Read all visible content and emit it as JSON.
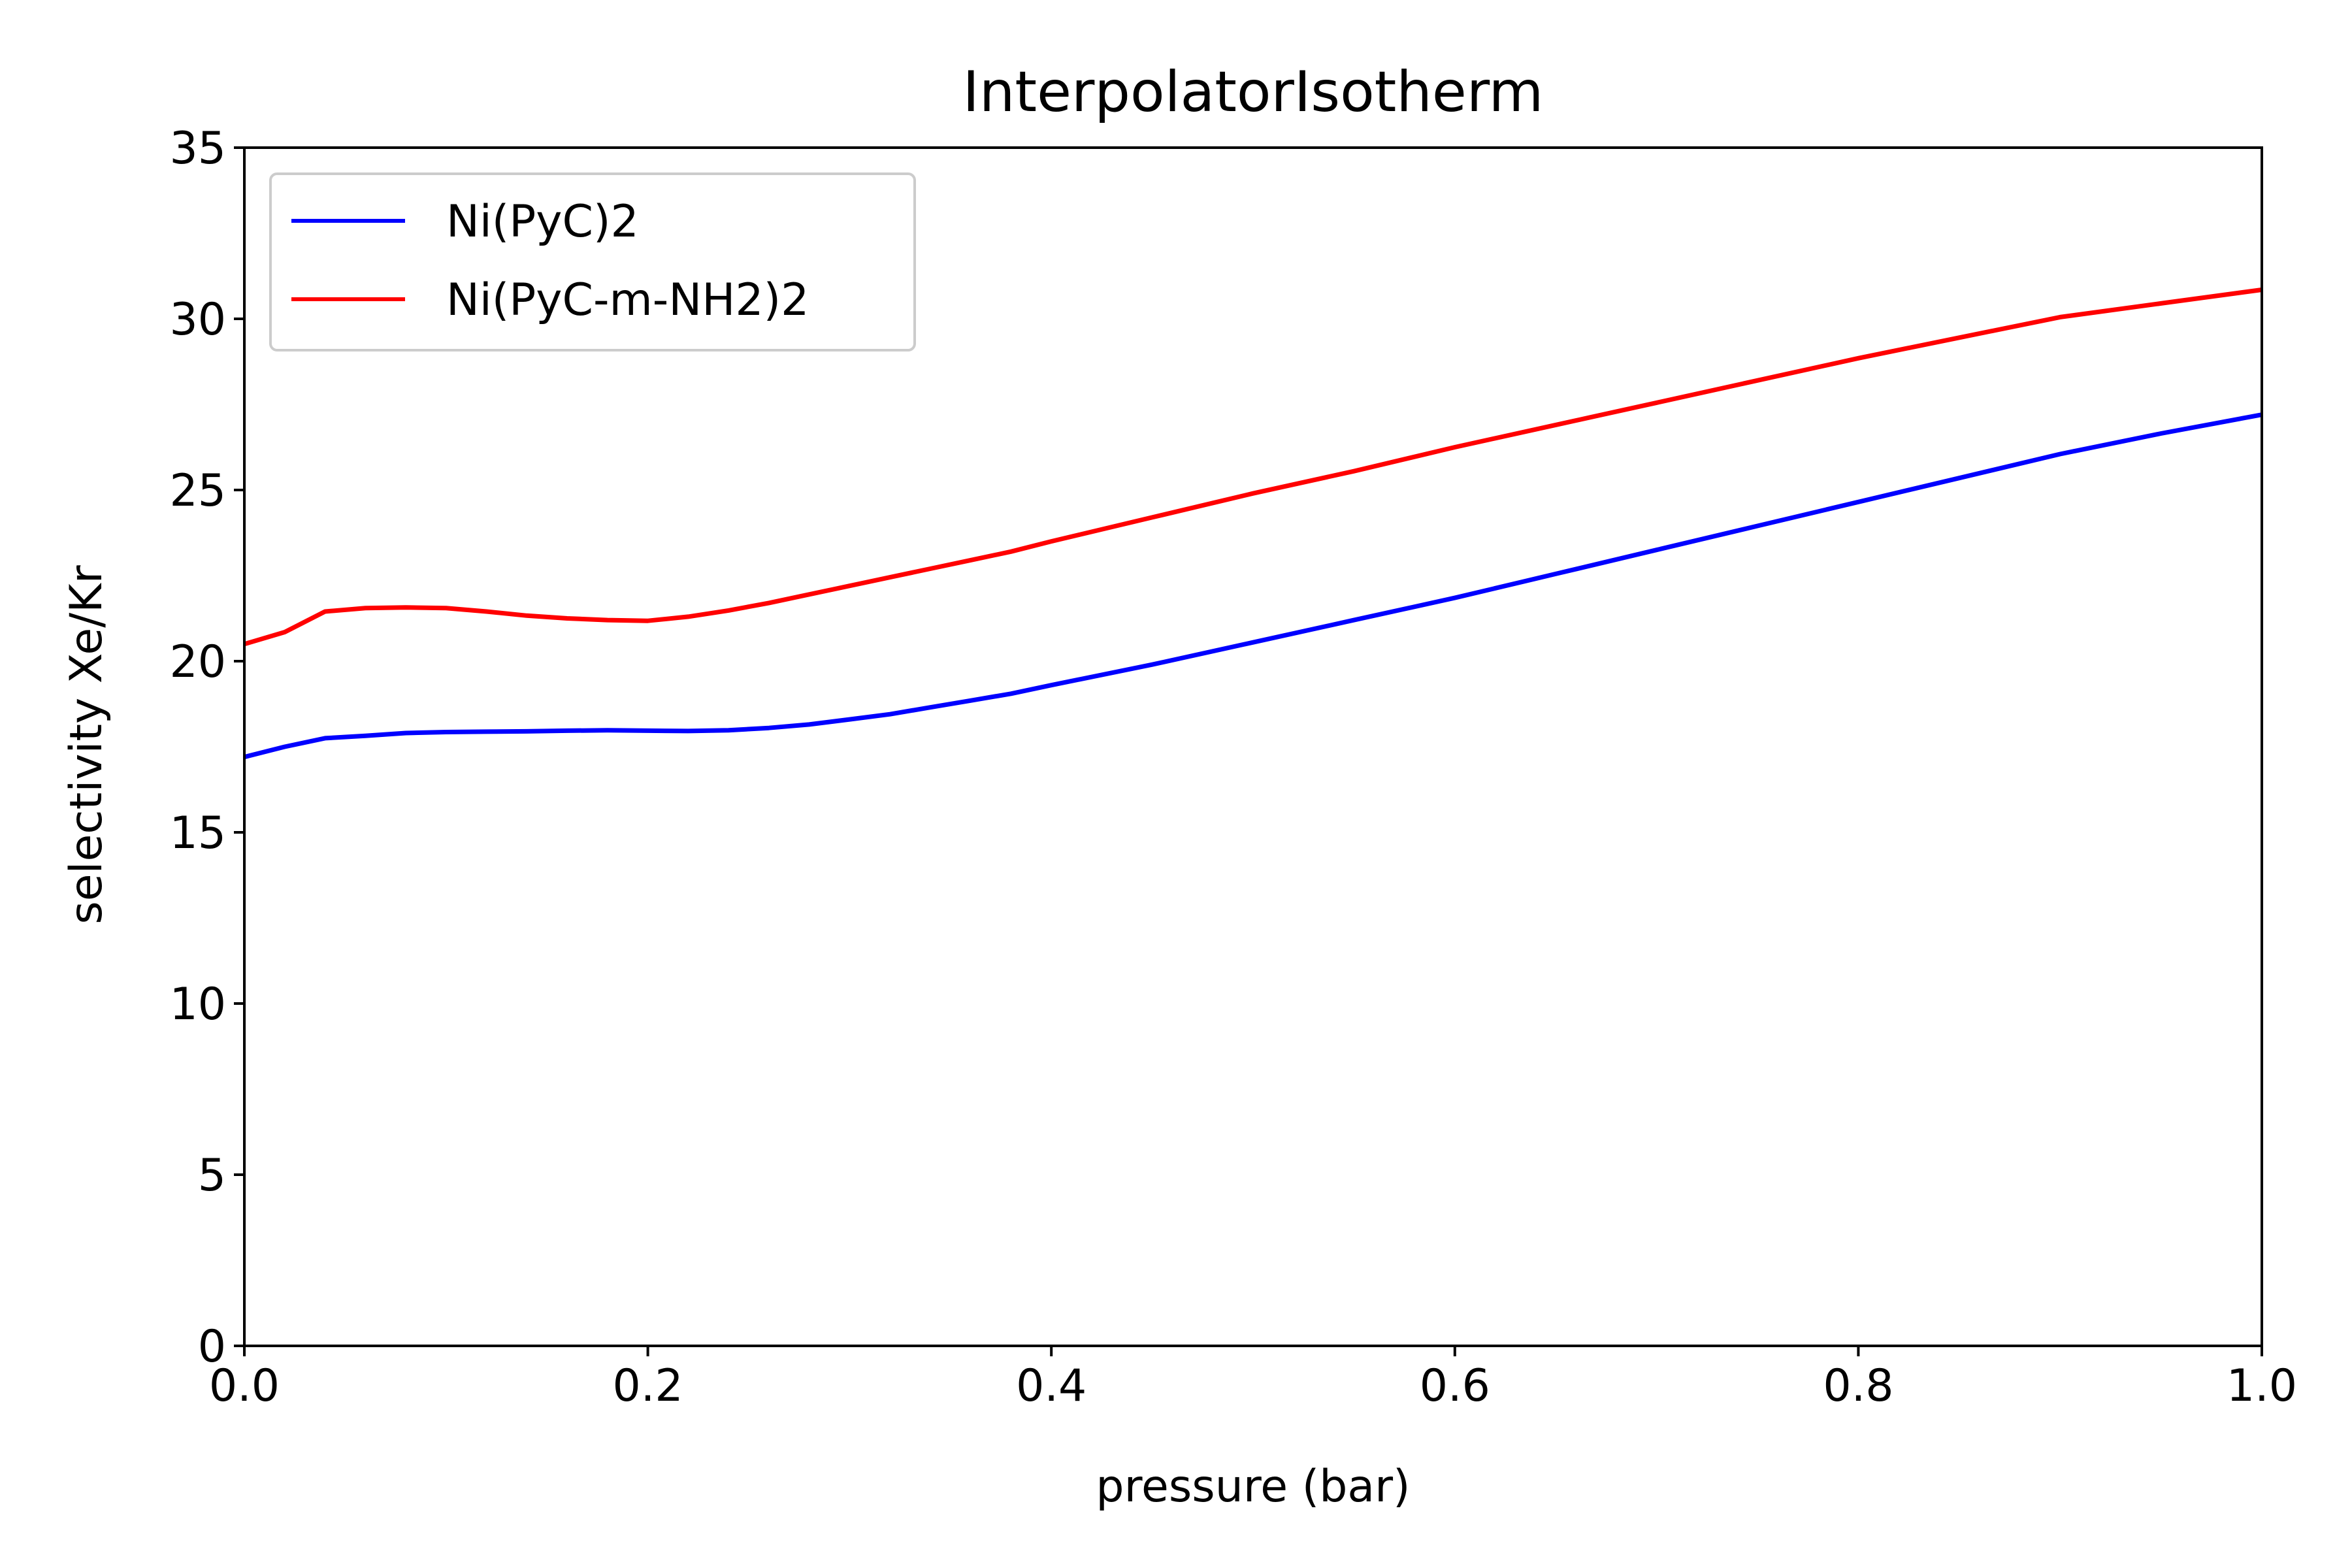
{
  "chart_data": {
    "type": "line",
    "title": "InterpolatorIsotherm",
    "xlabel": "pressure (bar)",
    "ylabel": "selectivity Xe/Kr",
    "xlim": [
      0.0,
      1.0
    ],
    "ylim": [
      0,
      35
    ],
    "x_ticks": [
      "0.0",
      "0.2",
      "0.4",
      "0.6",
      "0.8",
      "1.0"
    ],
    "y_ticks": [
      "0",
      "5",
      "10",
      "15",
      "20",
      "25",
      "30",
      "35"
    ],
    "grid": false,
    "legend_position": "upper-left",
    "series": [
      {
        "name": "Ni(PyC)2",
        "color": "#0000ff",
        "points": [
          [
            0.0,
            17.2
          ],
          [
            0.02,
            17.5
          ],
          [
            0.04,
            17.75
          ],
          [
            0.06,
            17.82
          ],
          [
            0.08,
            17.9
          ],
          [
            0.1,
            17.93
          ],
          [
            0.12,
            17.94
          ],
          [
            0.14,
            17.95
          ],
          [
            0.16,
            17.97
          ],
          [
            0.18,
            17.98
          ],
          [
            0.2,
            17.97
          ],
          [
            0.22,
            17.96
          ],
          [
            0.24,
            17.98
          ],
          [
            0.26,
            18.05
          ],
          [
            0.28,
            18.15
          ],
          [
            0.3,
            18.3
          ],
          [
            0.32,
            18.45
          ],
          [
            0.34,
            18.65
          ],
          [
            0.36,
            18.85
          ],
          [
            0.38,
            19.05
          ],
          [
            0.4,
            19.3
          ],
          [
            0.45,
            19.9
          ],
          [
            0.5,
            20.55
          ],
          [
            0.55,
            21.2
          ],
          [
            0.6,
            21.85
          ],
          [
            0.65,
            22.55
          ],
          [
            0.7,
            23.25
          ],
          [
            0.75,
            23.95
          ],
          [
            0.8,
            24.65
          ],
          [
            0.85,
            25.35
          ],
          [
            0.9,
            26.05
          ],
          [
            0.95,
            26.65
          ],
          [
            1.0,
            27.2
          ]
        ]
      },
      {
        "name": "Ni(PyC-m-NH2)2",
        "color": "#ff0000",
        "points": [
          [
            0.0,
            20.5
          ],
          [
            0.02,
            20.85
          ],
          [
            0.04,
            21.45
          ],
          [
            0.06,
            21.55
          ],
          [
            0.08,
            21.57
          ],
          [
            0.1,
            21.55
          ],
          [
            0.12,
            21.45
          ],
          [
            0.14,
            21.33
          ],
          [
            0.16,
            21.25
          ],
          [
            0.18,
            21.2
          ],
          [
            0.2,
            21.18
          ],
          [
            0.22,
            21.3
          ],
          [
            0.24,
            21.48
          ],
          [
            0.26,
            21.7
          ],
          [
            0.28,
            21.95
          ],
          [
            0.3,
            22.2
          ],
          [
            0.32,
            22.45
          ],
          [
            0.34,
            22.7
          ],
          [
            0.36,
            22.95
          ],
          [
            0.38,
            23.2
          ],
          [
            0.4,
            23.5
          ],
          [
            0.45,
            24.2
          ],
          [
            0.5,
            24.9
          ],
          [
            0.55,
            25.55
          ],
          [
            0.6,
            26.25
          ],
          [
            0.65,
            26.9
          ],
          [
            0.7,
            27.55
          ],
          [
            0.75,
            28.2
          ],
          [
            0.8,
            28.85
          ],
          [
            0.85,
            29.45
          ],
          [
            0.9,
            30.05
          ],
          [
            0.95,
            30.45
          ],
          [
            1.0,
            30.85
          ]
        ]
      }
    ]
  }
}
